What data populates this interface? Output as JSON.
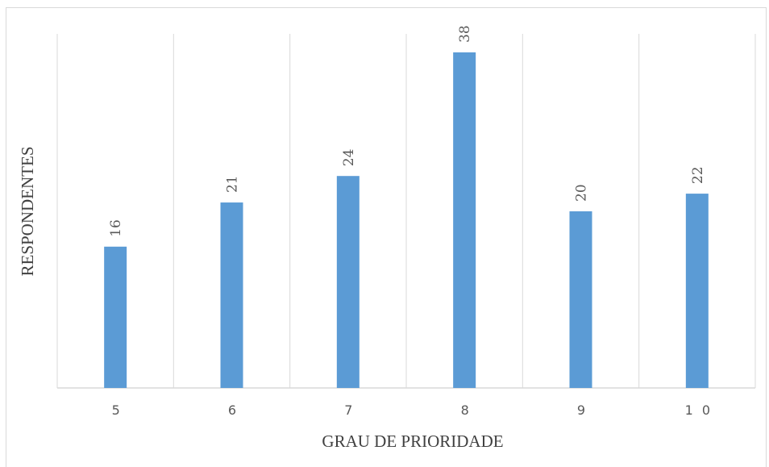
{
  "chart_data": {
    "type": "bar",
    "categories": [
      "5",
      "6",
      "7",
      "8",
      "9",
      "10"
    ],
    "tick_labels": [
      "5",
      "6",
      "7",
      "8",
      "9",
      "1 0"
    ],
    "values": [
      16,
      21,
      24,
      38,
      20,
      22
    ],
    "xlabel": "GRAU DE PRIORIDADE",
    "ylabel": "RESPONDENTES",
    "ylim": [
      0,
      40
    ],
    "bar_color": "#5b9bd5",
    "grid": "vertical",
    "data_labels": true,
    "legend": "none"
  }
}
